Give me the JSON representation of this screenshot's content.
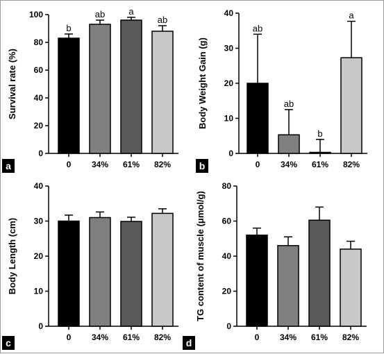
{
  "chart_data": [
    {
      "panel": "a",
      "type": "bar",
      "ylabel": "Survival rate (%)",
      "categories": [
        "0",
        "34%",
        "61%",
        "82%"
      ],
      "values": [
        83,
        93,
        96,
        88
      ],
      "errors": [
        3,
        3,
        2,
        4
      ],
      "significance": [
        "b",
        "ab",
        "a",
        "ab"
      ],
      "ylim": [
        0,
        100
      ],
      "yticks": [
        0,
        20,
        40,
        60,
        80,
        100
      ],
      "colors": [
        "#000000",
        "#808080",
        "#5a5a5a",
        "#c8c8c8"
      ]
    },
    {
      "panel": "b",
      "type": "bar",
      "ylabel": "Body Weight Gain (g)",
      "categories": [
        "0",
        "34%",
        "61%",
        "82%"
      ],
      "values": [
        20,
        5.3,
        0.3,
        27.3
      ],
      "errors": [
        14,
        7.2,
        3.7,
        10.4
      ],
      "significance": [
        "ab",
        "ab",
        "b",
        "a"
      ],
      "ylim": [
        0,
        40
      ],
      "yticks": [
        0,
        10,
        20,
        30,
        40
      ],
      "colors": [
        "#000000",
        "#808080",
        "#5a5a5a",
        "#c8c8c8"
      ]
    },
    {
      "panel": "c",
      "type": "bar",
      "ylabel": "Body Length (cm)",
      "categories": [
        "0",
        "34%",
        "61%",
        "82%"
      ],
      "values": [
        30,
        31,
        29.9,
        32.2
      ],
      "errors": [
        1.7,
        1.6,
        1.2,
        1.3
      ],
      "significance": [],
      "ylim": [
        0,
        40
      ],
      "yticks": [
        0,
        10,
        20,
        30,
        40
      ],
      "colors": [
        "#000000",
        "#808080",
        "#5a5a5a",
        "#c8c8c8"
      ]
    },
    {
      "panel": "d",
      "type": "bar",
      "ylabel": "TG content of muscle (μmol/g)",
      "categories": [
        "0",
        "34%",
        "61%",
        "82%"
      ],
      "values": [
        52,
        46,
        60.5,
        44
      ],
      "errors": [
        4,
        5,
        7.5,
        4.5
      ],
      "significance": [],
      "ylim": [
        0,
        80
      ],
      "yticks": [
        0,
        20,
        40,
        60,
        80
      ],
      "colors": [
        "#000000",
        "#808080",
        "#5a5a5a",
        "#c8c8c8"
      ]
    }
  ]
}
